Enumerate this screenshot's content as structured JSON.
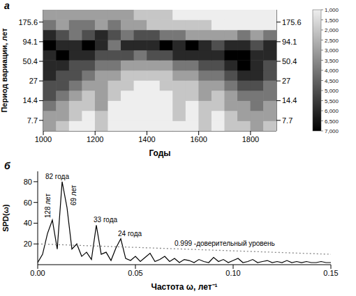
{
  "chart_data": [
    {
      "type": "heatmap",
      "panel_label": "a",
      "x_label": "Годы",
      "y_label": "Период вариации, лет",
      "log": "y",
      "xlim": [
        1000,
        1900
      ],
      "xticks": [
        1000,
        1200,
        1400,
        1600,
        1800
      ],
      "ylim": [
        5.5,
        260
      ],
      "yticks": [
        7.7,
        14.4,
        27,
        50.4,
        94.1,
        175.6
      ],
      "x": [
        1025,
        1075,
        1125,
        1175,
        1225,
        1275,
        1325,
        1375,
        1425,
        1475,
        1525,
        1575,
        1625,
        1675,
        1725,
        1775,
        1825,
        1875
      ],
      "y": [
        6.5,
        8.9,
        12.3,
        16.9,
        23.4,
        32.2,
        44.4,
        61.3,
        84.5,
        116.6,
        160.8,
        221.7
      ],
      "cells": [
        [
          3,
          2,
          1,
          1,
          2,
          1,
          1,
          1,
          1,
          1,
          1,
          1,
          2,
          1,
          2,
          2,
          3,
          2
        ],
        [
          3,
          3,
          2,
          1,
          2,
          1,
          1,
          1,
          1,
          1,
          2,
          1,
          2,
          1,
          2,
          3,
          3,
          3
        ],
        [
          4,
          3,
          2,
          2,
          3,
          1,
          1,
          1,
          1,
          1,
          2,
          1,
          2,
          2,
          3,
          3,
          4,
          3
        ],
        [
          5,
          4,
          3,
          2,
          3,
          2,
          1,
          1,
          1,
          1,
          2,
          2,
          3,
          2,
          3,
          4,
          4,
          4
        ],
        [
          5,
          5,
          4,
          3,
          3,
          2,
          2,
          1,
          1,
          2,
          2,
          2,
          3,
          3,
          4,
          5,
          5,
          4
        ],
        [
          6,
          5,
          5,
          4,
          3,
          3,
          2,
          2,
          2,
          2,
          3,
          3,
          4,
          4,
          5,
          6,
          6,
          5
        ],
        [
          6,
          6,
          5,
          5,
          4,
          4,
          3,
          3,
          3,
          3,
          4,
          4,
          5,
          5,
          6,
          7,
          6,
          5
        ],
        [
          6,
          7,
          6,
          6,
          5,
          5,
          5,
          4,
          5,
          5,
          6,
          6,
          6,
          6,
          7,
          7,
          6,
          6
        ],
        [
          7,
          6,
          6,
          7,
          6,
          4,
          6,
          6,
          6,
          7,
          6,
          7,
          6,
          5,
          6,
          6,
          5,
          6
        ],
        [
          6,
          5,
          4,
          5,
          6,
          5,
          4,
          5,
          5,
          4,
          4,
          3,
          3,
          3,
          3,
          4,
          3,
          4
        ],
        [
          4,
          3,
          4,
          4,
          3,
          4,
          3,
          3,
          2,
          2,
          2,
          2,
          2,
          1,
          1,
          1,
          1,
          1
        ],
        [
          3,
          3,
          3,
          3,
          3,
          3,
          3,
          2,
          2,
          2,
          1,
          1,
          1,
          1,
          1,
          1,
          1,
          1
        ]
      ],
      "colorbar": {
        "range": [
          1,
          7
        ],
        "ticks": [
          {
            "value": 1,
            "label": "1,000"
          },
          {
            "value": 1.5,
            "label": "1,500"
          },
          {
            "value": 2,
            "label": "2,000"
          },
          {
            "value": 2.5,
            "label": "2,500"
          },
          {
            "value": 3,
            "label": "3,000"
          },
          {
            "value": 3.5,
            "label": "3,500"
          },
          {
            "value": 4,
            "label": "4,000"
          },
          {
            "value": 4.5,
            "label": "4,500"
          },
          {
            "value": 5,
            "label": "5,000"
          },
          {
            "value": 5.5,
            "label": "5,500"
          },
          {
            "value": 6,
            "label": "6,000"
          },
          {
            "value": 6.5,
            "label": "6,500"
          },
          {
            "value": 7,
            "label": "7,000"
          }
        ]
      }
    },
    {
      "type": "line",
      "panel_label": "б",
      "x_label": "Частота ω, лет⁻¹",
      "y_label": "SPD(ω)",
      "xlim": [
        0,
        0.15
      ],
      "xticks": [
        {
          "value": 0,
          "label": "0.00"
        },
        {
          "value": 0.05,
          "label": "0.05"
        },
        {
          "value": 0.1,
          "label": "0.10"
        },
        {
          "value": 0.15,
          "label": "0.15"
        }
      ],
      "ylim": [
        0,
        90
      ],
      "yticks": [
        20,
        40,
        60,
        80
      ],
      "x": [
        0,
        0.0025,
        0.005,
        0.0075,
        0.01,
        0.0125,
        0.015,
        0.0175,
        0.02,
        0.0225,
        0.025,
        0.0275,
        0.03,
        0.0325,
        0.035,
        0.0375,
        0.04,
        0.0425,
        0.045,
        0.0475,
        0.05,
        0.0525,
        0.055,
        0.0575,
        0.06,
        0.0625,
        0.065,
        0.0675,
        0.07,
        0.0725,
        0.075,
        0.0775,
        0.08,
        0.0825,
        0.085,
        0.0875,
        0.09,
        0.0925,
        0.095,
        0.0975,
        0.1,
        0.1025,
        0.105,
        0.1075,
        0.11,
        0.1125,
        0.115,
        0.1175,
        0.12,
        0.1225,
        0.125,
        0.1275,
        0.13,
        0.1325,
        0.135,
        0.1375,
        0.14,
        0.1425,
        0.145,
        0.1475,
        0.15
      ],
      "series": [
        {
          "color": "#000000",
          "line_style": "solid",
          "values": [
            2,
            10,
            30,
            43,
            15,
            80,
            55,
            15,
            20,
            8,
            12,
            5,
            38,
            10,
            12,
            4,
            16,
            25,
            6,
            4,
            8,
            3,
            7,
            11,
            3,
            5,
            8,
            3,
            6,
            2,
            5,
            4,
            2,
            5,
            3,
            2,
            7,
            3,
            5,
            2,
            4,
            6,
            2,
            3,
            5,
            2,
            3,
            4,
            2,
            3,
            2,
            4,
            2,
            3,
            2,
            3,
            2,
            2,
            3,
            2,
            2
          ]
        },
        {
          "color": "#888888",
          "line_style": "dotted",
          "values": [
            20,
            19.8,
            19.7,
            19.5,
            19.3,
            19.2,
            19,
            18.8,
            18.7,
            18.5,
            18.3,
            18.2,
            18,
            17.8,
            17.7,
            17.5,
            17.3,
            17.2,
            17,
            16.8,
            16.7,
            16.5,
            16.3,
            16.2,
            16,
            15.8,
            15.7,
            15.5,
            15.3,
            15.2,
            15,
            14.8,
            14.7,
            14.5,
            14.3,
            14.2,
            14,
            13.8,
            13.7,
            13.5,
            13.3,
            13.2,
            13,
            12.8,
            12.7,
            12.5,
            12.3,
            12.2,
            12,
            11.8,
            11.7,
            11.5,
            11.3,
            11.2,
            11,
            10.8,
            10.7,
            10.5,
            10.3,
            10.2,
            10
          ]
        }
      ],
      "annotations": [
        {
          "text": "128 лет",
          "x": 0.0075,
          "y": 43
        },
        {
          "text": "82 года",
          "x": 0.0125,
          "y": 80
        },
        {
          "text": "69 лет",
          "x": 0.015,
          "y": 55
        },
        {
          "text": "33 года",
          "x": 0.03,
          "y": 38
        },
        {
          "text": "24 года",
          "x": 0.0425,
          "y": 25
        },
        {
          "text": "0.999 -доверительный уровень",
          "x": 0.07,
          "y": 18
        }
      ]
    }
  ]
}
